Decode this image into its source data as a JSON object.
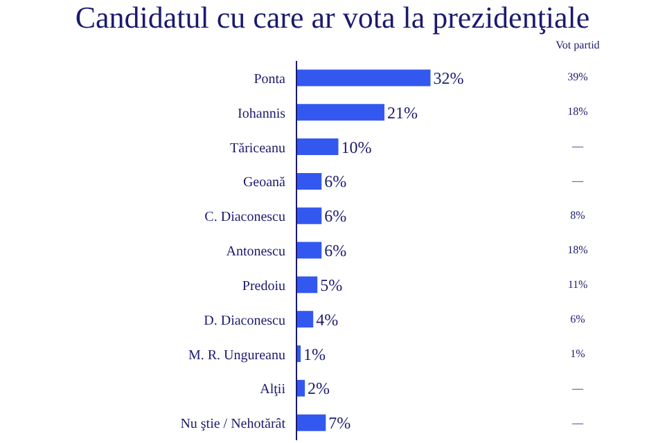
{
  "chart_data": {
    "type": "bar",
    "orientation": "horizontal",
    "title": "Candidatul cu care ar vota la prezidenţiale",
    "categories": [
      "Ponta",
      "Iohannis",
      "Tăriceanu",
      "Geoană",
      "C. Diaconescu",
      "Antonescu",
      "Predoiu",
      "D. Diaconescu",
      "M. R. Ungureanu",
      "Alţii",
      "Nu ştie / Nehotărât"
    ],
    "values": [
      32,
      21,
      10,
      6,
      6,
      6,
      5,
      4,
      1,
      2,
      7
    ],
    "value_labels": [
      "32%",
      "21%",
      "10%",
      "6%",
      "6%",
      "6%",
      "5%",
      "4%",
      "1%",
      "2%",
      "7%"
    ],
    "color": "#3358f0",
    "annotations": [
      "Vot partid",
      "39%",
      "18%",
      "—",
      "—",
      "8%",
      "18%",
      "11%",
      "6%",
      "1%",
      "—",
      "—"
    ]
  }
}
